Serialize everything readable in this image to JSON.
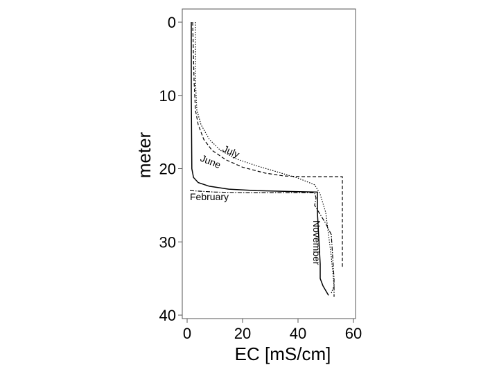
{
  "chart_data": {
    "type": "line",
    "xlabel": "EC [mS/cm]",
    "ylabel": "meter",
    "xlim": [
      0,
      60
    ],
    "ylim": [
      0,
      40
    ],
    "y_inverted": true,
    "grid": false,
    "x_ticks": [
      0,
      20,
      40,
      60
    ],
    "y_ticks": [
      0,
      10,
      20,
      30,
      40
    ],
    "series": [
      {
        "name": "July",
        "style": "dotted",
        "points": [
          [
            3,
            0
          ],
          [
            3,
            8
          ],
          [
            3.5,
            12
          ],
          [
            5,
            14
          ],
          [
            8,
            16
          ],
          [
            12,
            17.5
          ],
          [
            18,
            18.7
          ],
          [
            25,
            19.6
          ],
          [
            33,
            20.5
          ],
          [
            40,
            21.3
          ],
          [
            46,
            22.2
          ],
          [
            48,
            23.5
          ],
          [
            50,
            26
          ],
          [
            51,
            29
          ],
          [
            52,
            32
          ],
          [
            53,
            36
          ],
          [
            52,
            37
          ]
        ]
      },
      {
        "name": "June",
        "style": "dashed",
        "points": [
          [
            2,
            0
          ],
          [
            2.5,
            8
          ],
          [
            3,
            12
          ],
          [
            4,
            14
          ],
          [
            6,
            16
          ],
          [
            9,
            17.5
          ],
          [
            14,
            18.8
          ],
          [
            20,
            19.8
          ],
          [
            28,
            20.6
          ],
          [
            35,
            21
          ],
          [
            42,
            21.1
          ],
          [
            50,
            21.1
          ],
          [
            56,
            21.1
          ],
          [
            56,
            27
          ],
          [
            56,
            33.5
          ]
        ]
      },
      {
        "name": "February",
        "style": "solid",
        "points": [
          [
            1.5,
            0
          ],
          [
            1.5,
            10
          ],
          [
            1.7,
            20
          ],
          [
            2.3,
            21.2
          ],
          [
            4,
            21.9
          ],
          [
            8,
            22.4
          ],
          [
            15,
            22.8
          ],
          [
            25,
            23
          ],
          [
            35,
            23.1
          ],
          [
            47,
            23.2
          ],
          [
            47,
            26
          ],
          [
            48,
            33
          ],
          [
            48,
            35
          ],
          [
            49,
            36
          ],
          [
            51,
            37.3
          ]
        ]
      },
      {
        "name": "November",
        "style": "dash-dot",
        "points": [
          [
            1,
            23
          ],
          [
            10,
            23.2
          ],
          [
            22,
            23.3
          ],
          [
            35,
            23.3
          ],
          [
            46,
            23.3
          ],
          [
            46.5,
            24
          ],
          [
            46,
            25
          ],
          [
            50,
            27.5
          ],
          [
            52,
            29
          ],
          [
            52.5,
            32
          ],
          [
            53,
            35
          ],
          [
            53,
            37.5
          ]
        ]
      }
    ]
  }
}
